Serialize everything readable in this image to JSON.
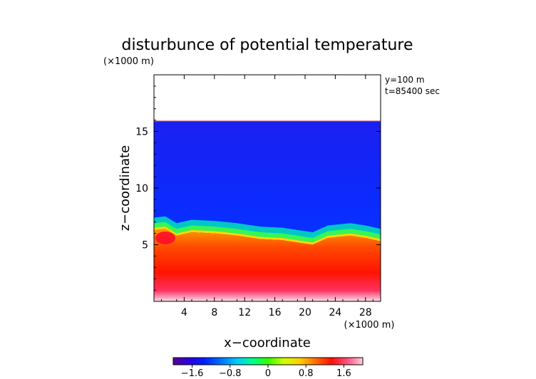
{
  "chart_data": {
    "type": "heatmap",
    "title": "disturbunce of potential temperature",
    "xlabel": "x−coordinate",
    "ylabel": "z−coordinate",
    "x_unit": "(×1000 m)",
    "y_unit": "(×1000 m)",
    "annotations": [
      "y=100  m",
      "t=85400 sec"
    ],
    "xlim": [
      0,
      30
    ],
    "ylim": [
      0,
      20
    ],
    "x_ticks": [
      4,
      8,
      12,
      16,
      20,
      24,
      28
    ],
    "y_ticks": [
      5,
      10,
      15
    ],
    "colorbar": {
      "range": [
        -2.0,
        2.0
      ],
      "ticks": [
        -1.6,
        -0.8,
        0,
        0.8,
        1.6
      ],
      "tick_labels": [
        "−1.6",
        "−0.8",
        "0",
        "0.8",
        "1.6"
      ],
      "colors": [
        "#5a0096",
        "#2a00e0",
        "#0020ff",
        "#0070ff",
        "#00c8ff",
        "#00ff90",
        "#30ff00",
        "#d0ff00",
        "#ffd000",
        "#ff7000",
        "#ff1000",
        "#ff5080",
        "#ffd0e0"
      ]
    },
    "field": {
      "top_boundary_z": 15.9,
      "interface_z": [
        [
          0,
          6.5
        ],
        [
          1.5,
          6.6
        ],
        [
          3,
          6.0
        ],
        [
          5,
          6.3
        ],
        [
          8,
          6.2
        ],
        [
          11,
          6.0
        ],
        [
          14,
          5.7
        ],
        [
          17,
          5.6
        ],
        [
          19,
          5.4
        ],
        [
          21,
          5.2
        ],
        [
          23,
          5.8
        ],
        [
          26,
          6.0
        ],
        [
          28,
          5.8
        ],
        [
          30,
          5.5
        ]
      ],
      "upper_value": -1.5,
      "surface_value": 2.0
    }
  }
}
